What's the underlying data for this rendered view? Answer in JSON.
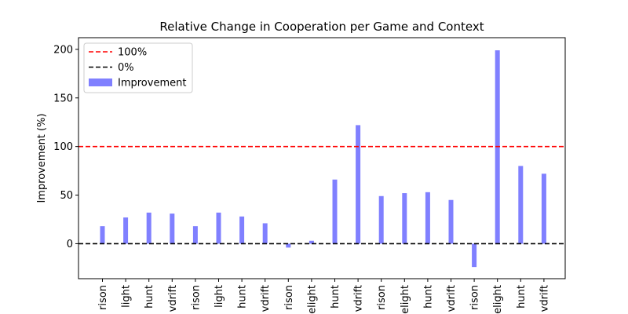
{
  "chart_data": {
    "type": "bar",
    "title": "Relative Change in Cooperation per Game and Context",
    "xlabel": "",
    "ylabel": "Improvement (%)",
    "ylim": [
      -36,
      212
    ],
    "yticks": [
      0,
      50,
      100,
      150,
      200
    ],
    "grid": false,
    "legend": {
      "position": "top-left",
      "entries": [
        {
          "label": "100%",
          "kind": "dashed-line",
          "color": "#ff0000"
        },
        {
          "label": "0%",
          "kind": "dashed-line",
          "color": "#000000"
        },
        {
          "label": "Improvement",
          "kind": "bar",
          "color": "#8080ff"
        }
      ]
    },
    "categories": [
      "rison",
      "light",
      "hunt",
      "vdrift",
      "rison",
      "light",
      "hunt",
      "vdrift",
      "rison",
      "elight",
      "hunt",
      "vdrift",
      "rison",
      "elight",
      "hunt",
      "vdrift",
      "rison",
      "elight",
      "hunt",
      "vdrift"
    ],
    "series": [
      {
        "name": "Improvement",
        "color": "#8080ff",
        "values": [
          18,
          27,
          32,
          31,
          18,
          32,
          28,
          21,
          -4,
          3,
          66,
          122,
          49,
          52,
          53,
          45,
          -24,
          199,
          80,
          72
        ]
      }
    ],
    "reference_lines": [
      {
        "label": "100%",
        "y": 100,
        "color": "#ff0000",
        "style": "dashed"
      },
      {
        "label": "0%",
        "y": 0,
        "color": "#000000",
        "style": "dashed"
      }
    ]
  }
}
